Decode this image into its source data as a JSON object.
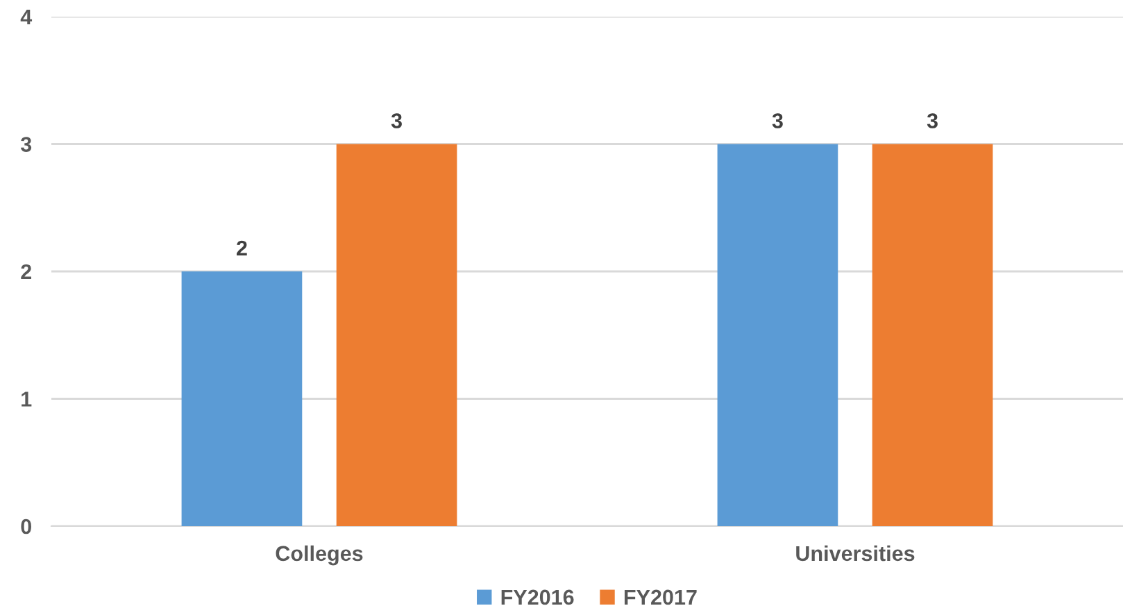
{
  "chart_data": {
    "type": "bar",
    "categories": [
      "Colleges",
      "Universities"
    ],
    "series": [
      {
        "name": "FY2016",
        "color": "#5b9bd5",
        "values": [
          2,
          3
        ]
      },
      {
        "name": "FY2017",
        "color": "#ed7d31",
        "values": [
          3,
          3
        ]
      }
    ],
    "ylim": [
      0,
      4
    ],
    "yticks": [
      0,
      1,
      2,
      3,
      4
    ],
    "grid": "y",
    "legend": "bottom",
    "data_labels": true
  }
}
